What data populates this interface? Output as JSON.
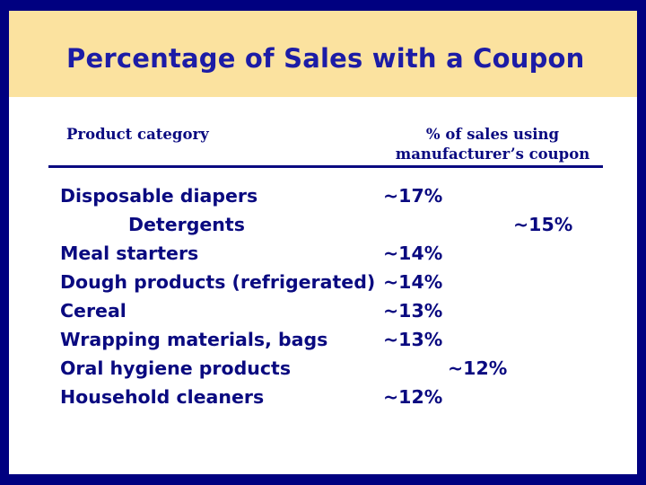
{
  "title": "Percentage of Sales with a Coupon",
  "headers": {
    "category": "Product category",
    "percent_line1": "% of sales using",
    "percent_line2": "manufacturer’s coupon"
  },
  "rows": [
    {
      "category": "Disposable diapers",
      "percent": "~17%"
    },
    {
      "category": "Detergents",
      "percent": "~15%"
    },
    {
      "category": "Meal starters",
      "percent": "~14%"
    },
    {
      "category": "Dough products (refrigerated)",
      "percent": "~14%"
    },
    {
      "category": "Cereal",
      "percent": "~13%"
    },
    {
      "category": "Wrapping materials, bags",
      "percent": "~13%"
    },
    {
      "category": "Oral hygiene products",
      "percent": "~12%"
    },
    {
      "category": "Household cleaners",
      "percent": "~12%"
    }
  ],
  "colors": {
    "background": "#000080",
    "title_band": "#fbe29f",
    "title_text": "#1c1ca6",
    "body_text": "#0a0a80"
  }
}
